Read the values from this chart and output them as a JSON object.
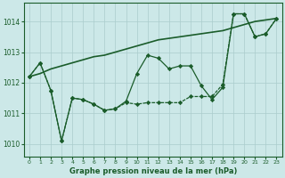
{
  "title": "Graphe pression niveau de la mer (hPa)",
  "bg_color": "#cce8e8",
  "line_color": "#1a5c2a",
  "grid_color": "#aacccc",
  "x_ticks": [
    0,
    1,
    2,
    3,
    4,
    5,
    6,
    7,
    8,
    9,
    10,
    11,
    12,
    13,
    14,
    15,
    16,
    17,
    18,
    19,
    20,
    21,
    22,
    23
  ],
  "ylim": [
    1009.6,
    1014.6
  ],
  "yticks": [
    1010,
    1011,
    1012,
    1013,
    1014
  ],
  "series_smooth": [
    1012.2,
    1012.3,
    1012.45,
    1012.55,
    1012.65,
    1012.75,
    1012.85,
    1012.9,
    1013.0,
    1013.1,
    1013.2,
    1013.3,
    1013.4,
    1013.45,
    1013.5,
    1013.55,
    1013.6,
    1013.65,
    1013.7,
    1013.8,
    1013.9,
    1014.0,
    1014.05,
    1014.1
  ],
  "series_mid": [
    1012.2,
    1012.65,
    1011.75,
    1010.1,
    1011.5,
    1011.45,
    1011.3,
    1011.1,
    1011.15,
    1011.4,
    1012.3,
    1012.9,
    1012.8,
    1012.45,
    1012.55,
    1012.55,
    1011.9,
    1011.45,
    1011.85,
    1014.25,
    1014.25,
    1013.5,
    1013.6,
    1014.1
  ],
  "series_low": [
    1012.2,
    1012.65,
    1011.75,
    1010.1,
    1011.5,
    1011.45,
    1011.3,
    1011.1,
    1011.15,
    1011.35,
    1011.3,
    1011.35,
    1011.35,
    1011.35,
    1011.35,
    1011.55,
    1011.55,
    1011.55,
    1011.95,
    1014.25,
    1014.25,
    1013.5,
    1013.6,
    1014.1
  ]
}
